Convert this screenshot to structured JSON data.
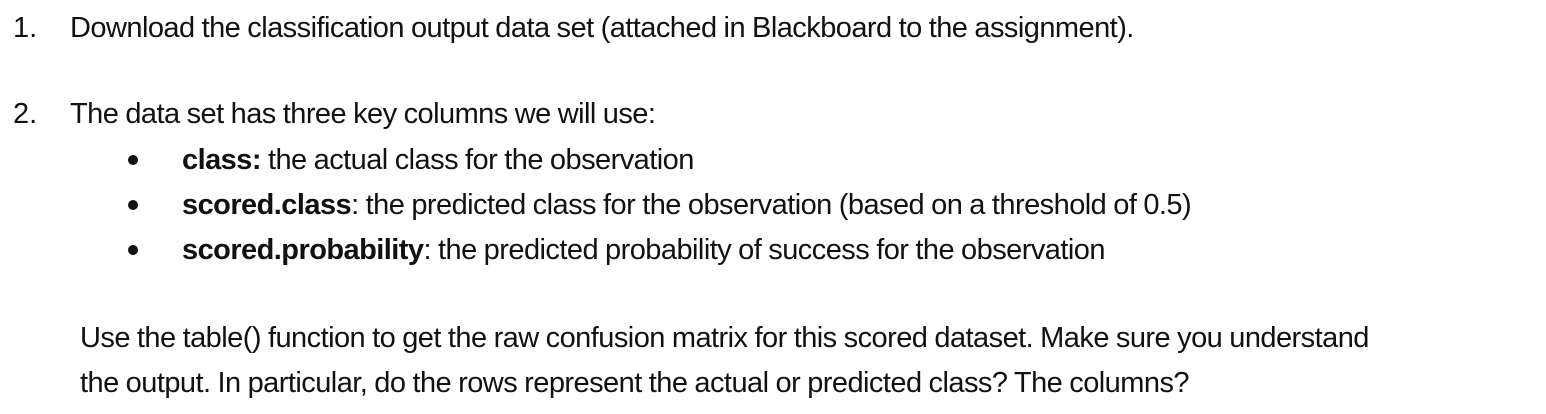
{
  "items": [
    {
      "number": "1.",
      "text": "Download the classification output data set (attached in Blackboard to the assignment)."
    },
    {
      "number": "2.",
      "text": "The data set has three key columns we will use:",
      "bullets": [
        {
          "term": "class:",
          "description": " the actual class for the observation"
        },
        {
          "term": "scored.class",
          "description": ": the predicted class for the observation (based on a threshold of 0.5)"
        },
        {
          "term": "scored.probability",
          "description": ": the predicted probability of success for the observation"
        }
      ]
    }
  ],
  "paragraph": {
    "line1": "Use the table() function to get the raw confusion matrix for this scored dataset. Make sure you understand",
    "line2": "the output. In particular, do the rows represent the actual or predicted class? The columns?"
  }
}
